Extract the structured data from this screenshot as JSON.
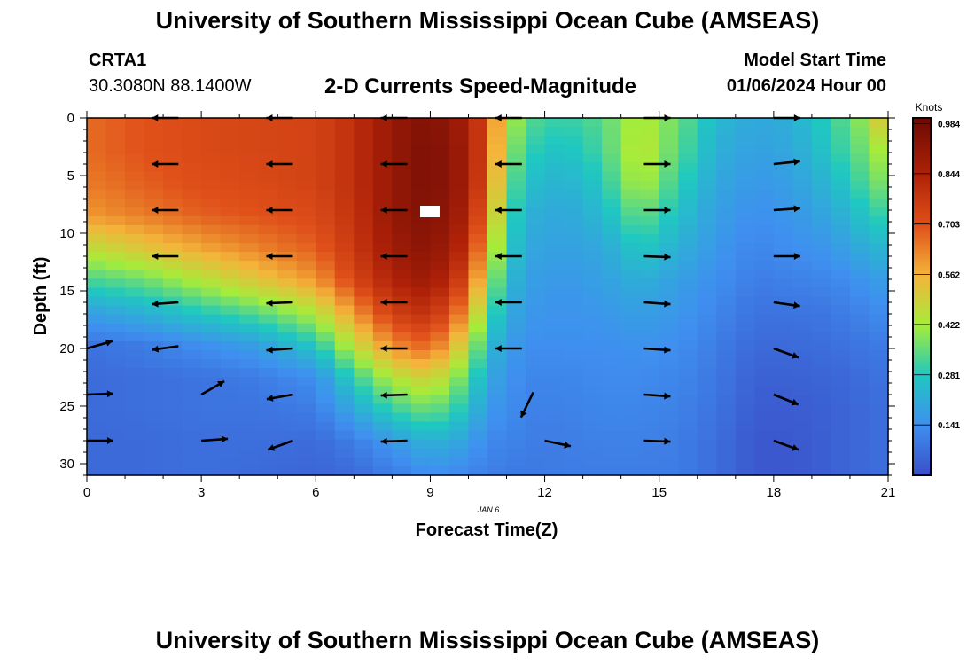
{
  "header": {
    "title": "University of Southern Mississippi Ocean Cube (AMSEAS)",
    "station": "CRTA1",
    "coords": "30.3080N  88.1400W",
    "subtitle": "2-D Currents Speed-Magnitude",
    "model_start_label": "Model Start Time",
    "model_start_value": "01/06/2024 Hour 00",
    "footer_title": "University of Southern Mississippi Ocean Cube (AMSEAS)"
  },
  "chart_data": {
    "type": "heatmap",
    "title": "2-D Currents Speed-Magnitude",
    "xlabel": "Forecast Time(Z)",
    "ylabel": "Depth (ft)",
    "date_label": "JAN 6",
    "xlim": [
      0,
      21
    ],
    "ylim": [
      31,
      0
    ],
    "x_ticks": [
      0,
      3,
      6,
      9,
      12,
      15,
      18,
      21
    ],
    "y_ticks": [
      0,
      5,
      10,
      15,
      20,
      25,
      30
    ],
    "colorbar": {
      "label": "Knots",
      "min": 0.0,
      "max": 1.0,
      "ticks": [
        0.984,
        0.844,
        0.703,
        0.562,
        0.422,
        0.281,
        0.141
      ]
    },
    "speed_profiles": [
      {
        "hour": 0.0,
        "values": [
          0.66,
          0.66,
          0.64,
          0.6,
          0.46,
          0.32,
          0.18,
          0.08,
          0.06,
          0.06,
          0.06,
          0.06
        ]
      },
      {
        "hour": 1.5,
        "values": [
          0.7,
          0.7,
          0.68,
          0.64,
          0.52,
          0.36,
          0.22,
          0.1,
          0.07,
          0.07,
          0.06,
          0.06
        ]
      },
      {
        "hour": 3.0,
        "values": [
          0.72,
          0.72,
          0.71,
          0.68,
          0.58,
          0.44,
          0.28,
          0.14,
          0.08,
          0.08,
          0.07,
          0.07
        ]
      },
      {
        "hour": 4.5,
        "values": [
          0.73,
          0.73,
          0.72,
          0.7,
          0.63,
          0.52,
          0.34,
          0.18,
          0.1,
          0.08,
          0.07,
          0.06
        ]
      },
      {
        "hour": 6.0,
        "values": [
          0.74,
          0.74,
          0.74,
          0.72,
          0.68,
          0.6,
          0.44,
          0.28,
          0.14,
          0.1,
          0.06,
          0.05
        ]
      },
      {
        "hour": 7.0,
        "values": [
          0.8,
          0.8,
          0.8,
          0.79,
          0.77,
          0.73,
          0.6,
          0.46,
          0.3,
          0.2,
          0.1,
          0.06
        ]
      },
      {
        "hour": 8.0,
        "values": [
          0.9,
          0.9,
          0.9,
          0.9,
          0.88,
          0.84,
          0.75,
          0.62,
          0.44,
          0.3,
          0.16,
          0.1
        ]
      },
      {
        "hour": 9.0,
        "values": [
          0.95,
          0.96,
          0.96,
          0.95,
          0.93,
          0.89,
          0.8,
          0.68,
          0.5,
          0.36,
          0.22,
          0.14
        ]
      },
      {
        "hour": 10.0,
        "values": [
          0.86,
          0.87,
          0.87,
          0.85,
          0.8,
          0.72,
          0.6,
          0.46,
          0.34,
          0.26,
          0.18,
          0.12
        ]
      },
      {
        "hour": 10.5,
        "values": [
          0.7,
          0.7,
          0.68,
          0.62,
          0.54,
          0.44,
          0.34,
          0.26,
          0.2,
          0.16,
          0.12,
          0.1
        ]
      },
      {
        "hour": 11.0,
        "values": [
          0.46,
          0.42,
          0.38,
          0.34,
          0.3,
          0.26,
          0.22,
          0.18,
          0.16,
          0.14,
          0.12,
          0.1
        ]
      },
      {
        "hour": 11.5,
        "values": [
          0.34,
          0.3,
          0.26,
          0.22,
          0.2,
          0.18,
          0.16,
          0.14,
          0.12,
          0.11,
          0.1,
          0.09
        ]
      },
      {
        "hour": 12.5,
        "values": [
          0.3,
          0.26,
          0.22,
          0.2,
          0.18,
          0.16,
          0.15,
          0.14,
          0.12,
          0.11,
          0.1,
          0.1
        ]
      },
      {
        "hour": 13.5,
        "values": [
          0.34,
          0.32,
          0.28,
          0.24,
          0.2,
          0.18,
          0.16,
          0.14,
          0.13,
          0.12,
          0.11,
          0.1
        ]
      },
      {
        "hour": 14.5,
        "values": [
          0.44,
          0.46,
          0.44,
          0.36,
          0.28,
          0.22,
          0.18,
          0.15,
          0.13,
          0.12,
          0.11,
          0.1
        ]
      },
      {
        "hour": 15.5,
        "values": [
          0.36,
          0.34,
          0.3,
          0.26,
          0.22,
          0.18,
          0.16,
          0.14,
          0.12,
          0.11,
          0.1,
          0.1
        ]
      },
      {
        "hour": 16.5,
        "values": [
          0.24,
          0.22,
          0.2,
          0.18,
          0.16,
          0.14,
          0.12,
          0.1,
          0.09,
          0.08,
          0.07,
          0.07
        ]
      },
      {
        "hour": 17.5,
        "values": [
          0.2,
          0.18,
          0.16,
          0.14,
          0.12,
          0.1,
          0.08,
          0.06,
          0.04,
          0.03,
          0.02,
          0.02
        ]
      },
      {
        "hour": 18.5,
        "values": [
          0.22,
          0.2,
          0.18,
          0.16,
          0.14,
          0.11,
          0.08,
          0.06,
          0.04,
          0.03,
          0.02,
          0.02
        ]
      },
      {
        "hour": 19.5,
        "values": [
          0.3,
          0.28,
          0.24,
          0.2,
          0.16,
          0.12,
          0.09,
          0.07,
          0.05,
          0.04,
          0.04,
          0.04
        ]
      },
      {
        "hour": 20.5,
        "values": [
          0.42,
          0.38,
          0.34,
          0.28,
          0.22,
          0.16,
          0.12,
          0.09,
          0.07,
          0.06,
          0.06,
          0.06
        ]
      },
      {
        "hour": 21.0,
        "values": [
          0.58,
          0.46,
          0.4,
          0.32,
          0.24,
          0.18,
          0.14,
          0.1,
          0.08,
          0.07,
          0.07,
          0.07
        ]
      }
    ],
    "depth_levels_ft": [
      0,
      2.8,
      5.6,
      8.4,
      11.3,
      14.1,
      16.9,
      19.7,
      22.5,
      25.4,
      28.2,
      31
    ],
    "vectors": [
      {
        "hour": 2.4,
        "depth": 0,
        "dir": 180,
        "len": 1.0
      },
      {
        "hour": 2.4,
        "depth": 4,
        "dir": 180,
        "len": 1.0
      },
      {
        "hour": 2.4,
        "depth": 8,
        "dir": 180,
        "len": 1.0
      },
      {
        "hour": 2.4,
        "depth": 12,
        "dir": 180,
        "len": 1.0
      },
      {
        "hour": 2.4,
        "depth": 16,
        "dir": 184,
        "len": 1.0
      },
      {
        "hour": 2.4,
        "depth": 19.8,
        "dir": 188,
        "len": 1.0
      },
      {
        "hour": 3.0,
        "depth": 24,
        "dir": 30,
        "len": 1.0
      },
      {
        "hour": 3.0,
        "depth": 28,
        "dir": 4,
        "len": 1.0
      },
      {
        "hour": 0.0,
        "depth": 20,
        "dir": 16,
        "len": 1.0
      },
      {
        "hour": 0.0,
        "depth": 24,
        "dir": 2,
        "len": 1.0
      },
      {
        "hour": 0.0,
        "depth": 28,
        "dir": 0,
        "len": 1.0
      },
      {
        "hour": 5.4,
        "depth": 0,
        "dir": 180,
        "len": 1.0
      },
      {
        "hour": 5.4,
        "depth": 4,
        "dir": 180,
        "len": 1.0
      },
      {
        "hour": 5.4,
        "depth": 8,
        "dir": 180,
        "len": 1.0
      },
      {
        "hour": 5.4,
        "depth": 12,
        "dir": 180,
        "len": 1.0
      },
      {
        "hour": 5.4,
        "depth": 16,
        "dir": 182,
        "len": 1.0
      },
      {
        "hour": 5.4,
        "depth": 20,
        "dir": 184,
        "len": 1.0
      },
      {
        "hour": 5.4,
        "depth": 24,
        "dir": 190,
        "len": 1.0
      },
      {
        "hour": 5.4,
        "depth": 28,
        "dir": 200,
        "len": 1.0
      },
      {
        "hour": 8.4,
        "depth": 0,
        "dir": 180,
        "len": 1.0
      },
      {
        "hour": 8.4,
        "depth": 4,
        "dir": 180,
        "len": 1.0
      },
      {
        "hour": 8.4,
        "depth": 8,
        "dir": 180,
        "len": 1.0
      },
      {
        "hour": 8.4,
        "depth": 12,
        "dir": 180,
        "len": 1.0
      },
      {
        "hour": 8.4,
        "depth": 16,
        "dir": 180,
        "len": 1.0
      },
      {
        "hour": 8.4,
        "depth": 20,
        "dir": 180,
        "len": 1.0
      },
      {
        "hour": 8.4,
        "depth": 24,
        "dir": 182,
        "len": 1.0
      },
      {
        "hour": 8.4,
        "depth": 28,
        "dir": 182,
        "len": 1.0
      },
      {
        "hour": 11.4,
        "depth": 0,
        "dir": 180,
        "len": 1.0
      },
      {
        "hour": 11.4,
        "depth": 4,
        "dir": 180,
        "len": 1.0
      },
      {
        "hour": 11.4,
        "depth": 8,
        "dir": 180,
        "len": 1.0
      },
      {
        "hour": 11.4,
        "depth": 12,
        "dir": 180,
        "len": 1.0
      },
      {
        "hour": 11.4,
        "depth": 16,
        "dir": 180,
        "len": 1.0
      },
      {
        "hour": 11.4,
        "depth": 20,
        "dir": 180,
        "len": 1.0
      },
      {
        "hour": 11.7,
        "depth": 23.8,
        "dir": 244,
        "len": 1.05
      },
      {
        "hour": 12.0,
        "depth": 28,
        "dir": -12,
        "len": 1.0
      },
      {
        "hour": 14.6,
        "depth": 0,
        "dir": 0,
        "len": 1.0
      },
      {
        "hour": 14.6,
        "depth": 4,
        "dir": 0,
        "len": 1.0
      },
      {
        "hour": 14.6,
        "depth": 8,
        "dir": 0,
        "len": 1.0
      },
      {
        "hour": 14.6,
        "depth": 12,
        "dir": -2,
        "len": 1.0
      },
      {
        "hour": 14.6,
        "depth": 16,
        "dir": -4,
        "len": 1.0
      },
      {
        "hour": 14.6,
        "depth": 20,
        "dir": -4,
        "len": 1.0
      },
      {
        "hour": 14.6,
        "depth": 24,
        "dir": -4,
        "len": 1.0
      },
      {
        "hour": 14.6,
        "depth": 28,
        "dir": -2,
        "len": 1.0
      },
      {
        "hour": 18.0,
        "depth": 0,
        "dir": 0,
        "len": 1.0
      },
      {
        "hour": 18.0,
        "depth": 4,
        "dir": 6,
        "len": 1.0
      },
      {
        "hour": 18.0,
        "depth": 8,
        "dir": 4,
        "len": 1.0
      },
      {
        "hour": 18.0,
        "depth": 12,
        "dir": 0,
        "len": 1.0
      },
      {
        "hour": 18.0,
        "depth": 16,
        "dir": -8,
        "len": 1.0
      },
      {
        "hour": 18.0,
        "depth": 20,
        "dir": -20,
        "len": 1.0
      },
      {
        "hour": 18.0,
        "depth": 24,
        "dir": -22,
        "len": 1.0
      },
      {
        "hour": 18.0,
        "depth": 28,
        "dir": -20,
        "len": 1.0
      }
    ]
  }
}
